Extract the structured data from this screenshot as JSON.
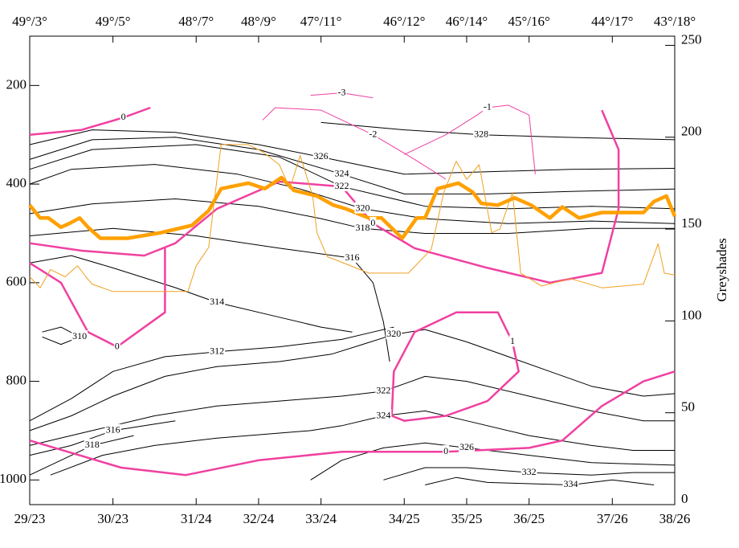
{
  "chart_data": {
    "type": "line",
    "xlim": [
      0,
      31
    ],
    "xticks": [
      {
        "value": 0,
        "label": "29/23"
      },
      {
        "value": 4,
        "label": "30/23"
      },
      {
        "value": 8,
        "label": "31/24"
      },
      {
        "value": 11,
        "label": "32/24"
      },
      {
        "value": 14,
        "label": "33/24"
      },
      {
        "value": 18,
        "label": "34/25"
      },
      {
        "value": 21,
        "label": "35/25"
      },
      {
        "value": 24,
        "label": "36/25"
      },
      {
        "value": 28,
        "label": "37/26"
      },
      {
        "value": 31,
        "label": "38/26"
      }
    ],
    "x2ticks": [
      {
        "value": 0,
        "label": "49°/3°"
      },
      {
        "value": 4,
        "label": "49°/5°"
      },
      {
        "value": 8,
        "label": "48°/7°"
      },
      {
        "value": 11,
        "label": "48°/9°"
      },
      {
        "value": 14,
        "label": "47°/11°"
      },
      {
        "value": 18,
        "label": "46°/12°"
      },
      {
        "value": 21,
        "label": "46°/14°"
      },
      {
        "value": 24,
        "label": "45°/16°"
      },
      {
        "value": 28,
        "label": "44°/17°"
      },
      {
        "value": 31,
        "label": "43°/18°"
      }
    ],
    "ylim": [
      1050,
      100
    ],
    "yticks": [
      200,
      400,
      600,
      800,
      1000
    ],
    "y2label": "Greyshades",
    "y2lim": [
      0,
      255
    ],
    "y2ticks": [
      0,
      50,
      100,
      150,
      200,
      250
    ],
    "series": [
      {
        "color": "#ffa000",
        "width": 4.5,
        "axis": "y2",
        "x": [
          0,
          0.5,
          0.9,
          1.5,
          1.9,
          2.4,
          2.8,
          3.4,
          4.7,
          6.3,
          7.8,
          8.6,
          9.2,
          10.5,
          11.3,
          12.1,
          12.7,
          13.8,
          14.6,
          15.2,
          16.3,
          16.9,
          17.9,
          18.6,
          19.0,
          19.6,
          20.6,
          21.3,
          21.7,
          22.5,
          23.3,
          24.1,
          25.0,
          25.6,
          26.4,
          27.5,
          29.5,
          30.0,
          30.6,
          31
        ],
        "values": [
          163,
          156,
          156,
          151,
          153,
          156,
          151,
          145,
          145,
          148,
          152,
          160,
          172,
          175,
          172,
          178,
          171,
          168,
          163,
          161,
          156,
          156,
          145,
          156,
          156,
          172,
          175,
          170,
          164,
          163,
          167,
          163,
          156,
          162,
          156,
          159,
          159,
          165,
          168,
          157
        ]
      },
      {
        "color": "#f0a020",
        "width": 1,
        "axis": "y2",
        "x": [
          0,
          0.5,
          1,
          1.7,
          2.3,
          2.7,
          3,
          4,
          7.6,
          8,
          8.6,
          9.2,
          9.7,
          10.5,
          11.2,
          12,
          12.5,
          13,
          13.6,
          13.8,
          14.3,
          15.2,
          16.3,
          18.2,
          19.3,
          19.9,
          20.5,
          21,
          21.6,
          22.2,
          22.6,
          23.2,
          23.6,
          24.6,
          26,
          27.5,
          29.5,
          30.2,
          30.5,
          31
        ],
        "values": [
          124,
          118,
          128,
          124,
          130,
          124,
          120,
          116,
          116,
          130,
          140,
          196,
          196,
          196,
          192,
          185,
          172,
          190,
          168,
          148,
          135,
          131,
          126,
          126,
          139,
          170,
          187,
          177,
          185,
          148,
          150,
          170,
          126,
          119,
          123,
          118,
          120,
          142,
          126,
          125
        ]
      },
      {
        "name": "328",
        "color": "#000000",
        "width": 1,
        "x": [
          14,
          18,
          21.7,
          25.6,
          31
        ],
        "values": [
          275,
          290,
          300,
          305,
          310
        ]
      },
      {
        "name": "326",
        "color": "#000000",
        "width": 1,
        "x": [
          0,
          3,
          7,
          11,
          14,
          18,
          22,
          26,
          31
        ],
        "values": [
          320,
          290,
          295,
          320,
          345,
          380,
          375,
          370,
          368
        ]
      },
      {
        "name": "324",
        "color": "#000000",
        "width": 1,
        "x": [
          0,
          3,
          7,
          11,
          15,
          18,
          22,
          26,
          31
        ],
        "values": [
          350,
          310,
          305,
          330,
          380,
          420,
          420,
          415,
          410
        ]
      },
      {
        "name": "322",
        "color": "#000000",
        "width": 1,
        "x": [
          0,
          3,
          8,
          12,
          15,
          19,
          23,
          27,
          31
        ],
        "values": [
          370,
          330,
          320,
          345,
          405,
          445,
          450,
          445,
          450
        ]
      },
      {
        "name": "320",
        "color": "#000000",
        "width": 1,
        "x": [
          0,
          2,
          6,
          10,
          13,
          16,
          19,
          23,
          27,
          31
        ],
        "values": [
          400,
          370,
          360,
          380,
          410,
          450,
          470,
          480,
          475,
          480
        ]
      },
      {
        "name": "318",
        "color": "#000000",
        "width": 1,
        "x": [
          0,
          3,
          7,
          11,
          14,
          16,
          19,
          23,
          27,
          31
        ],
        "values": [
          460,
          440,
          430,
          445,
          470,
          490,
          500,
          500,
          490,
          490
        ]
      },
      {
        "name": "316",
        "color": "#000000",
        "width": 1,
        "x": [
          0,
          4,
          8,
          12,
          15.5,
          16.5,
          17,
          17.3
        ],
        "values": [
          505,
          490,
          505,
          530,
          550,
          600,
          680,
          760
        ]
      },
      {
        "name": "314",
        "color": "#000000",
        "width": 1,
        "x": [
          0,
          2,
          4,
          7,
          9,
          12,
          14,
          15.5
        ],
        "values": [
          560,
          545,
          570,
          610,
          640,
          670,
          690,
          700
        ]
      },
      {
        "name": "310",
        "color": "#000000",
        "width": 1,
        "x": [
          0.6,
          1.5,
          2.4,
          1.5,
          0.6
        ],
        "values": [
          700,
          690,
          710,
          725,
          710
        ]
      },
      {
        "name": "312",
        "color": "#000000",
        "width": 1,
        "x": [
          0,
          2,
          4,
          6.5,
          9,
          12,
          15,
          16.5,
          17.5
        ],
        "values": [
          880,
          835,
          780,
          750,
          740,
          730,
          715,
          700,
          690
        ]
      },
      {
        "name": "320",
        "color": "#000000",
        "width": 1,
        "x": [
          0,
          2,
          4,
          6.5,
          9,
          12,
          14.5,
          16,
          17.5,
          19,
          21,
          23,
          25,
          27,
          29.5,
          31
        ],
        "values": [
          900,
          870,
          830,
          790,
          770,
          760,
          745,
          725,
          705,
          695,
          720,
          750,
          780,
          810,
          830,
          825
        ]
      },
      {
        "name": "322",
        "color": "#000000",
        "width": 1,
        "x": [
          0,
          3,
          6,
          9,
          12,
          15,
          17,
          19,
          21,
          24,
          27,
          29.5,
          31
        ],
        "values": [
          930,
          900,
          870,
          850,
          840,
          830,
          820,
          790,
          800,
          830,
          860,
          880,
          880
        ]
      },
      {
        "name": "324",
        "color": "#000000",
        "width": 1,
        "x": [
          1,
          3.5,
          6,
          9,
          12,
          13.5,
          15,
          17,
          19,
          21,
          24,
          27,
          29,
          31
        ],
        "values": [
          990,
          950,
          930,
          915,
          905,
          900,
          890,
          870,
          860,
          880,
          910,
          930,
          940,
          940
        ]
      },
      {
        "name": "326",
        "color": "#000000",
        "width": 1,
        "x": [
          13.5,
          15,
          17,
          19,
          21,
          24,
          27,
          31
        ],
        "values": [
          1000,
          960,
          935,
          925,
          935,
          950,
          965,
          970
        ]
      },
      {
        "name": "332",
        "color": "#000000",
        "width": 1,
        "x": [
          17,
          19,
          21,
          24,
          27,
          29,
          31
        ],
        "values": [
          1000,
          975,
          975,
          985,
          990,
          985,
          985
        ]
      },
      {
        "name": "334",
        "color": "#000000",
        "width": 1,
        "x": [
          19,
          20.5,
          22,
          26,
          28,
          30
        ],
        "values": [
          1010,
          995,
          1005,
          1010,
          1000,
          1010
        ]
      },
      {
        "name": "316",
        "color": "#000000",
        "width": 1,
        "x": [
          0,
          2,
          4,
          7
        ],
        "values": [
          950,
          930,
          900,
          880
        ]
      },
      {
        "name": "318",
        "color": "#000000",
        "width": 1,
        "x": [
          0,
          1.5,
          3,
          5
        ],
        "values": [
          990,
          960,
          930,
          910
        ]
      },
      {
        "name": "0",
        "color": "#f040a0",
        "width": 2.5,
        "x": [
          0,
          4.4,
          7.5,
          11,
          15,
          20,
          24,
          25.6,
          27.5,
          29.5,
          31
        ],
        "values": [
          920,
          975,
          990,
          960,
          943,
          943,
          935,
          920,
          850,
          800,
          780
        ]
      },
      {
        "name": "0",
        "color": "#f040a0",
        "width": 2.5,
        "x": [
          0,
          2.5,
          5.5,
          7,
          9,
          12,
          15,
          16.5,
          18.5,
          22,
          25,
          27.5,
          28.3,
          28.3,
          27.5
        ],
        "values": [
          520,
          535,
          545,
          520,
          450,
          395,
          405,
          480,
          530,
          570,
          600,
          580,
          450,
          330,
          250
        ]
      },
      {
        "name": "1",
        "color": "#f040a0",
        "width": 2.5,
        "x": [
          17.4,
          17.5,
          18.5,
          20.5,
          22.5,
          23.2,
          23.5,
          22,
          20,
          18,
          17.4
        ],
        "values": [
          870,
          780,
          700,
          660,
          660,
          720,
          780,
          840,
          870,
          880,
          870
        ]
      },
      {
        "name": "0",
        "color": "#f040a0",
        "width": 2.5,
        "x": [
          0,
          1.5,
          2.8,
          4.2,
          6.5,
          6.5
        ],
        "values": [
          560,
          600,
          700,
          730,
          660,
          530
        ]
      },
      {
        "name": "0",
        "color": "#f040a0",
        "width": 2.5,
        "x": [
          0,
          2.5,
          4.5,
          5.8
        ],
        "values": [
          300,
          290,
          265,
          245
        ]
      },
      {
        "name": "-1",
        "color": "#f040a0",
        "width": 1,
        "x": [
          18,
          20,
          21.5,
          22,
          23,
          24,
          24.3
        ],
        "values": [
          340,
          300,
          260,
          245,
          240,
          260,
          380
        ]
      },
      {
        "name": "-2",
        "color": "#f040a0",
        "width": 1,
        "x": [
          11.2,
          11.8,
          14,
          16.5,
          18.5,
          20
        ],
        "values": [
          270,
          245,
          250,
          300,
          350,
          390
        ]
      },
      {
        "name": "-3",
        "color": "#f040a0",
        "width": 1,
        "x": [
          13.5,
          15,
          16.5
        ],
        "values": [
          220,
          215,
          225
        ]
      }
    ]
  }
}
